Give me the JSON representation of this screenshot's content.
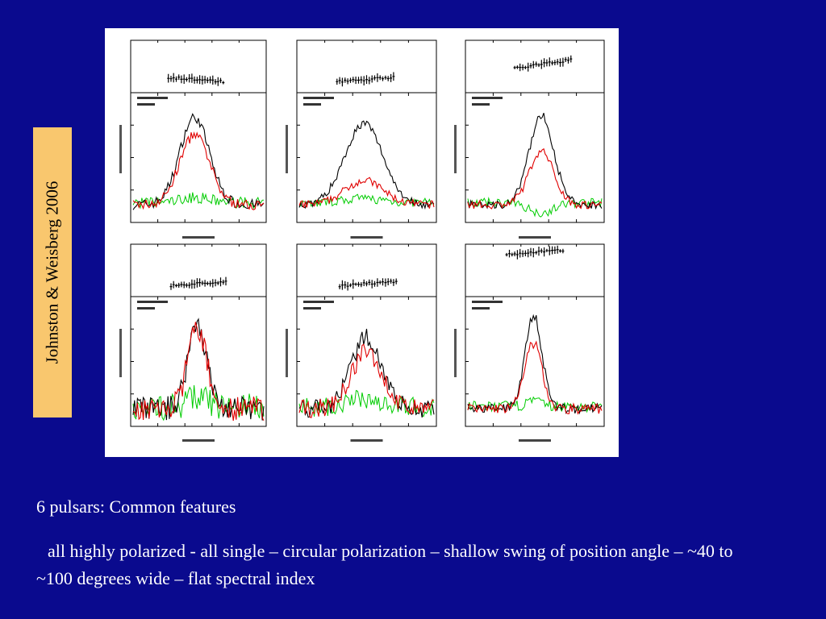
{
  "slide": {
    "citation": "Johnston & Weisberg 2006",
    "caption_title": "6 pulsars: Common features",
    "caption_body": "all highly polarized - all single – circular polarization – shallow swing of position angle – ~40 to ~100 degrees wide – flat spectral index"
  },
  "colors": {
    "background": "#0a0a8e",
    "citation_box": "#f9c76e",
    "total_intensity": "#000000",
    "linear_polarization": "#e00000",
    "circular_polarization": "#00cc00"
  }
}
